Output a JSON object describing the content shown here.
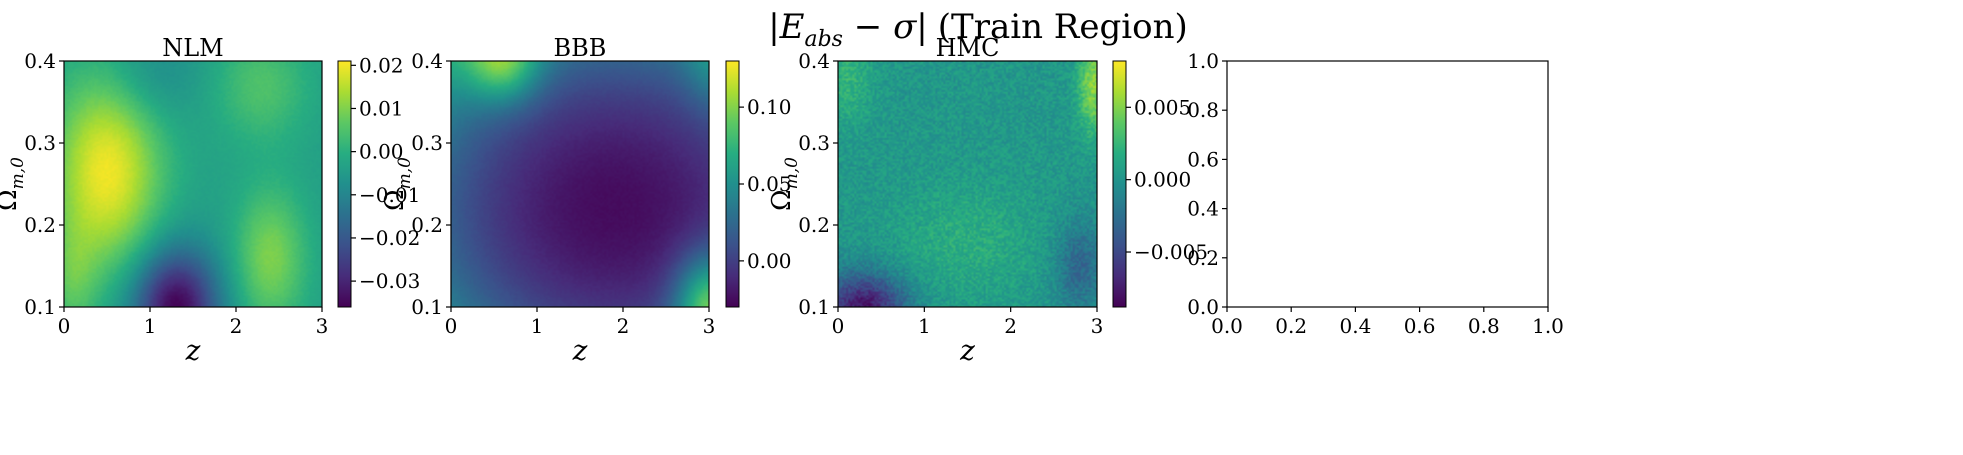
{
  "figure": {
    "title_math": "|E",
    "title_sub": "abs",
    "title_tail": " − σ|",
    "title_text": "(Train Region)"
  },
  "chart_data": [
    {
      "type": "heatmap",
      "title": "NLM",
      "xlabel": "z",
      "ylabel": "Ω",
      "ylabel_sub": "m,0",
      "xlim": [
        0,
        3
      ],
      "ylim": [
        0.1,
        0.4
      ],
      "xticks": [
        "0",
        "1",
        "2",
        "3"
      ],
      "yticks": [
        "0.1",
        "0.2",
        "0.3",
        "0.4"
      ],
      "colormap": "viridis",
      "colorbar_range": [
        -0.036,
        0.021
      ],
      "colorbar_ticks": [
        "−0.03",
        "−0.02",
        "−0.01",
        "0.00",
        "0.01",
        "0.02"
      ],
      "colorbar_tick_values": [
        -0.03,
        -0.02,
        -0.01,
        0.0,
        0.01,
        0.02
      ],
      "field": {
        "base": -0.004,
        "bumps": [
          {
            "x": 0.5,
            "y": 0.265,
            "sx": 0.45,
            "sy": 0.085,
            "a": 0.024
          },
          {
            "x": 0.1,
            "y": 0.13,
            "sx": 0.2,
            "sy": 0.05,
            "a": 0.008
          },
          {
            "x": 2.4,
            "y": 0.16,
            "sx": 0.3,
            "sy": 0.06,
            "a": 0.014
          },
          {
            "x": 2.3,
            "y": 0.37,
            "sx": 0.4,
            "sy": 0.05,
            "a": 0.009
          },
          {
            "x": 1.3,
            "y": 0.1,
            "sx": 0.35,
            "sy": 0.05,
            "a": -0.032
          },
          {
            "x": 1.0,
            "y": 0.38,
            "sx": 0.4,
            "sy": 0.04,
            "a": -0.006
          }
        ],
        "noise": 0.0006
      }
    },
    {
      "type": "heatmap",
      "title": "BBB",
      "xlabel": "z",
      "ylabel": "Ω",
      "ylabel_sub": "m,0",
      "xlim": [
        0,
        3
      ],
      "ylim": [
        0.1,
        0.4
      ],
      "xticks": [
        "0",
        "1",
        "2",
        "3"
      ],
      "yticks": [
        "0.1",
        "0.2",
        "0.3",
        "0.4"
      ],
      "colormap": "viridis",
      "colorbar_range": [
        -0.03,
        0.13
      ],
      "colorbar_ticks": [
        "0.00",
        "0.05",
        "0.10"
      ],
      "colorbar_tick_values": [
        0.0,
        0.05,
        0.1
      ],
      "field": {
        "base": 0.0,
        "quad": {
          "x": 1.9,
          "y": 0.22,
          "a": -0.025,
          "kx": 0.012,
          "ky": 1.4
        },
        "bumps": [
          {
            "x": 0.6,
            "y": 0.4,
            "sx": 0.3,
            "sy": 0.035,
            "a": 0.065
          },
          {
            "x": 3.0,
            "y": 0.1,
            "sx": 0.28,
            "sy": 0.045,
            "a": 0.085
          },
          {
            "x": 3.0,
            "y": 0.4,
            "sx": 0.2,
            "sy": 0.04,
            "a": 0.02
          }
        ],
        "noise": 0.0015
      }
    },
    {
      "type": "heatmap",
      "title": "HMC",
      "xlabel": "z",
      "ylabel": "Ω",
      "ylabel_sub": "m,0",
      "xlim": [
        0,
        3
      ],
      "ylim": [
        0.1,
        0.4
      ],
      "xticks": [
        "0",
        "1",
        "2",
        "3"
      ],
      "yticks": [
        "0.1",
        "0.2",
        "0.3",
        "0.4"
      ],
      "colormap": "viridis",
      "colorbar_range": [
        -0.0088,
        0.0082
      ],
      "colorbar_ticks": [
        "−0.005",
        "0.000",
        "0.005"
      ],
      "colorbar_tick_values": [
        -0.005,
        0.0,
        0.005
      ],
      "field": {
        "base": 0.0003,
        "bumps": [
          {
            "x": 0.3,
            "y": 0.1,
            "sx": 0.35,
            "sy": 0.03,
            "a": -0.008
          },
          {
            "x": 2.8,
            "y": 0.15,
            "sx": 0.2,
            "sy": 0.04,
            "a": -0.0035
          },
          {
            "x": 2.95,
            "y": 0.37,
            "sx": 0.12,
            "sy": 0.04,
            "a": 0.005
          },
          {
            "x": 1.5,
            "y": 0.18,
            "sx": 0.6,
            "sy": 0.05,
            "a": 0.0015
          },
          {
            "x": 0.1,
            "y": 0.38,
            "sx": 0.2,
            "sy": 0.04,
            "a": 0.002
          }
        ],
        "noise": 0.0012
      }
    },
    {
      "type": "scatter",
      "title": "",
      "xlim": [
        0.0,
        1.0
      ],
      "ylim": [
        0.0,
        1.0
      ],
      "xticks": [
        "0.0",
        "0.2",
        "0.4",
        "0.6",
        "0.8",
        "1.0"
      ],
      "yticks": [
        "0.0",
        "0.2",
        "0.4",
        "0.6",
        "0.8",
        "1.0"
      ],
      "series": []
    }
  ]
}
